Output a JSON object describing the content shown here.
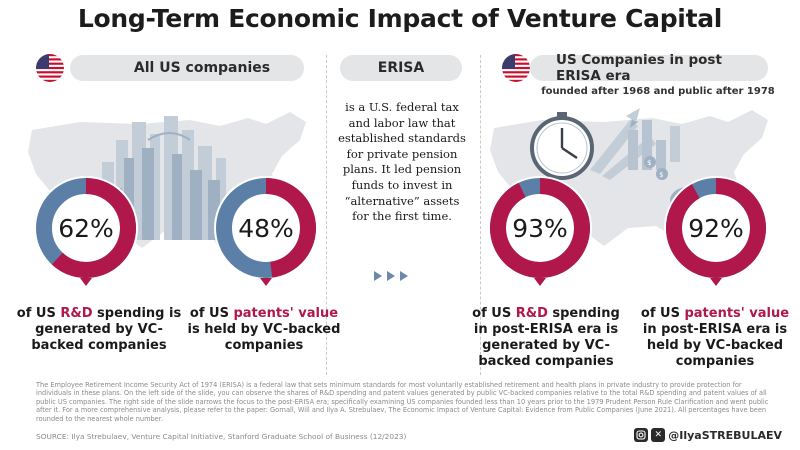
{
  "title": "Long-Term Economic Impact of Venture Capital",
  "sections": {
    "left_label": "All US companies",
    "middle_label": "ERISA",
    "right_label": "US Companies in post ERISA era",
    "right_subtitle": "founded after 1968 and public after 1978"
  },
  "erisa_description": "is a U.S. federal tax and labor law that established standards for private pension plans. It led pension funds to invest in “alternative” assets for the first time.",
  "colors": {
    "accent": "#b0174a",
    "secondary": "#5b7fa6",
    "map": "#e3e5e8"
  },
  "chart_data": [
    {
      "type": "pie",
      "value": 62,
      "label": "62%",
      "caption": {
        "pre": "of US ",
        "highlight": "R&D",
        "post": " spending is generated by VC-backed companies"
      }
    },
    {
      "type": "pie",
      "value": 48,
      "label": "48%",
      "caption": {
        "pre": "of US ",
        "highlight": "patents' value",
        "post": " is held by VC-backed companies"
      }
    },
    {
      "type": "pie",
      "value": 93,
      "label": "93%",
      "caption": {
        "pre": "of US ",
        "highlight": "R&D",
        "post": " spending in post-ERISA era is generated by VC-backed companies"
      }
    },
    {
      "type": "pie",
      "value": 92,
      "label": "92%",
      "caption": {
        "pre": "of US ",
        "highlight": "patents' value",
        "post": " in post-ERISA era is held by VC-backed companies"
      }
    }
  ],
  "footnote": "The Employee Retirement Income Security Act of 1974 (ERISA) is a federal law that sets minimum standards for most voluntarily established retirement and health plans in private industry to provide protection for individuals in these plans. On the left side of the slide, you can observe the shares of R&D spending and patent values generated by public VC-backed companies relative to the total R&D spending and patent values of all public US companies. The right side of the slide narrows the focus to the post-ERISA era; specifically examining US companies founded less than 10 years prior to the 1979 Prudent Person Rule Clarification and went public after it. For a more comprehensive analysis, please refer to the paper: Gornall, Will and Ilya A. Strebulaev, The Economic Impact of Venture Capital: Evidence from Public Companies (June 2021). All percentages have been rounded to the nearest whole number.",
  "source": "SOURCE: Ilya Strebulaev, Venture Capital Initiative, Stanford Graduate School of Business (12/2023)",
  "social_handle": "@IlyaSTREBULAEV",
  "social_icons": [
    "instagram-icon",
    "x-icon"
  ]
}
